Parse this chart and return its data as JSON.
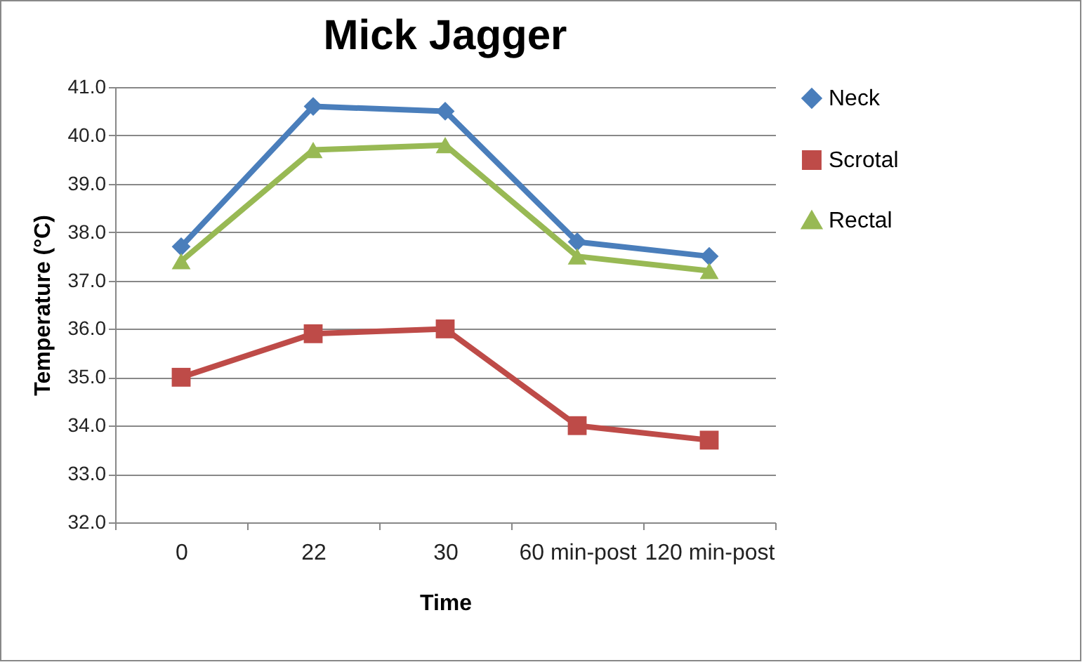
{
  "chart_data": {
    "type": "line",
    "title": "Mick Jagger",
    "xlabel": "Time",
    "ylabel": "Temperature (°C)",
    "categories": [
      "0",
      "22",
      "30",
      "60 min-post",
      "120 min-post"
    ],
    "series": [
      {
        "name": "Neck",
        "color": "#4a7ebb",
        "marker": "diamond",
        "values": [
          37.7,
          40.6,
          40.5,
          37.8,
          37.5
        ]
      },
      {
        "name": "Scrotal",
        "color": "#be4b48",
        "marker": "square",
        "values": [
          35.0,
          35.9,
          36.0,
          34.0,
          33.7
        ]
      },
      {
        "name": "Rectal",
        "color": "#98b954",
        "marker": "triangle",
        "values": [
          37.4,
          39.7,
          39.8,
          37.5,
          37.2
        ]
      }
    ],
    "ylim": [
      32,
      41
    ],
    "yticks": [
      {
        "value": 32,
        "label": "32.0"
      },
      {
        "value": 33,
        "label": "33.0"
      },
      {
        "value": 34,
        "label": "34.0"
      },
      {
        "value": 35,
        "label": "35.0"
      },
      {
        "value": 36,
        "label": "36.0"
      },
      {
        "value": 37,
        "label": "37.0"
      },
      {
        "value": 38,
        "label": "38.0"
      },
      {
        "value": 39,
        "label": "39.0"
      },
      {
        "value": 40,
        "label": "40.0"
      },
      {
        "value": 41,
        "label": "41.0"
      }
    ],
    "grid": "y",
    "legend": "right"
  }
}
